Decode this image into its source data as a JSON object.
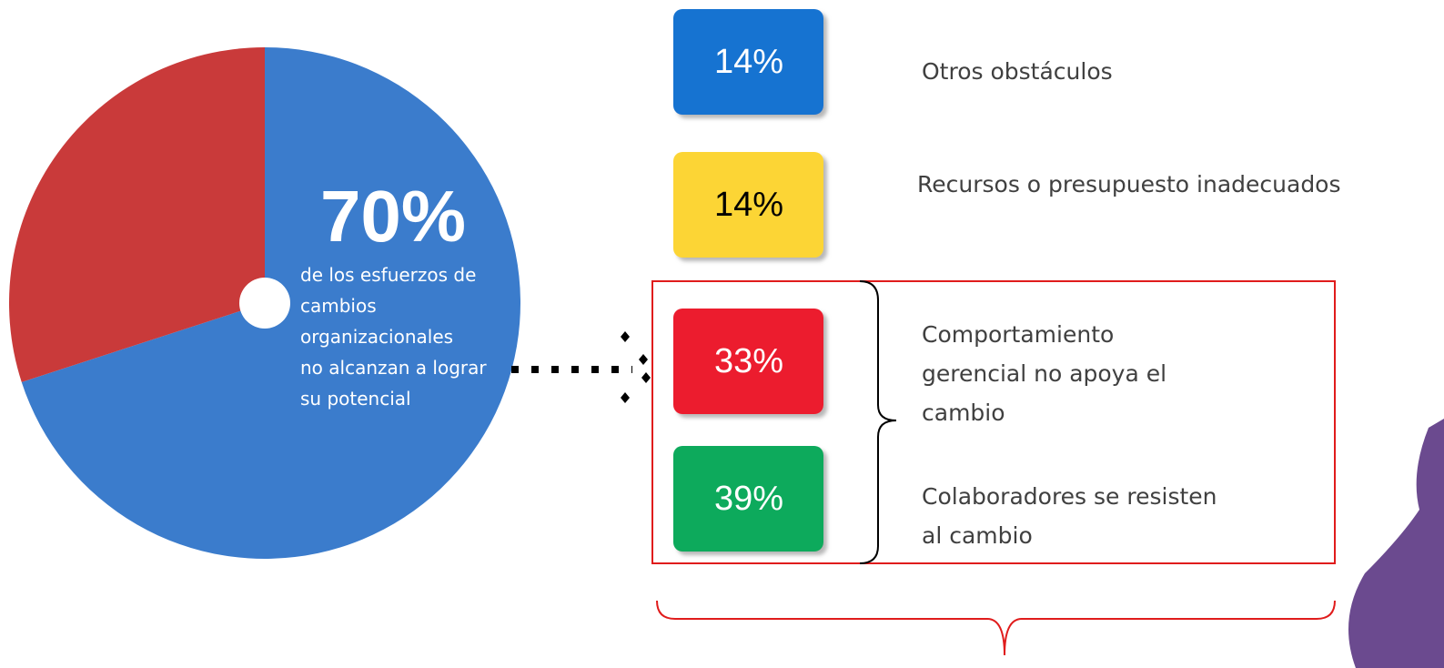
{
  "chart_data": {
    "type": "pie",
    "values": [
      70,
      30
    ],
    "value_labels": [
      "70%",
      null
    ],
    "colors": [
      "#3b7ccc",
      "#c93a3a"
    ],
    "annotation_lines": [
      "de los esfuerzos de",
      "cambios",
      "organizacionales",
      "no alcanzan a lograr",
      "su potencial"
    ]
  },
  "breakdown": [
    {
      "percent": "14%",
      "color": "#1673d1",
      "text_color": "#ffffff",
      "lines": [
        "Otros obstáculos"
      ]
    },
    {
      "percent": "14%",
      "color": "#fcd535",
      "text_color": "#000000",
      "lines": [
        "Recursos o presupuesto inadecuados"
      ]
    },
    {
      "percent": "33%",
      "color": "#ec1c2f",
      "text_color": "#ffffff",
      "lines": [
        "Comportamiento",
        "gerencial no apoya el",
        "cambio"
      ]
    },
    {
      "percent": "39%",
      "color": "#0aaa5b",
      "text_color": "#ffffff",
      "lines": [
        "Colaboradores se resisten",
        "al cambio"
      ]
    }
  ]
}
